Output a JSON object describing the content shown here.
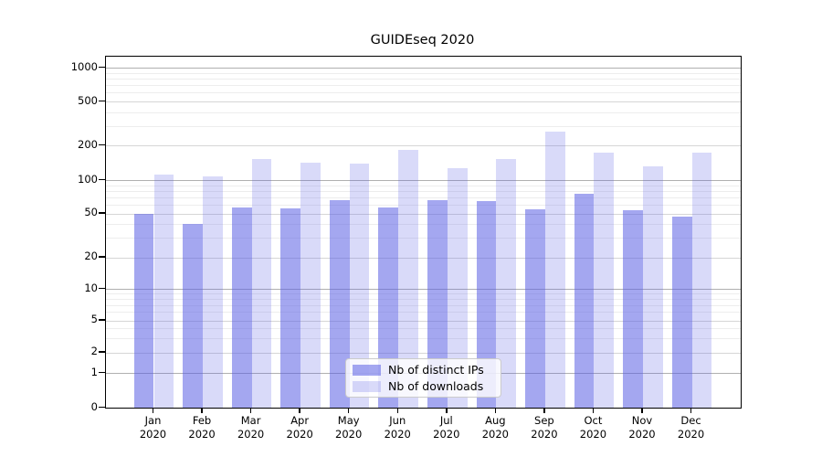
{
  "title": "GUIDEseq 2020",
  "chart_data": {
    "type": "bar",
    "title": "GUIDEseq 2020",
    "categories": [
      "Jan 2020",
      "Feb 2020",
      "Mar 2020",
      "Apr 2020",
      "May 2020",
      "Jun 2020",
      "Jul 2020",
      "Aug 2020",
      "Sep 2020",
      "Oct 2020",
      "Nov 2020",
      "Dec 2020"
    ],
    "series": [
      {
        "name": "Nb of distinct IPs",
        "color": "rgba(90,94,228,0.55)",
        "values": [
          50,
          40,
          57,
          56,
          66,
          57,
          66,
          65,
          54,
          75,
          53,
          47
        ]
      },
      {
        "name": "Nb of downloads",
        "color": "rgba(90,94,228,0.23)",
        "values": [
          112,
          108,
          152,
          141,
          140,
          182,
          127,
          154,
          265,
          174,
          133,
          174
        ]
      }
    ],
    "xlabel": "",
    "ylabel": "",
    "yscale": "symlog",
    "yticks": [
      0,
      1,
      2,
      5,
      10,
      20,
      50,
      100,
      200,
      500,
      1000
    ],
    "yminor_ticks": [
      3,
      4,
      6,
      7,
      8,
      9,
      30,
      40,
      60,
      70,
      80,
      90,
      300,
      400,
      600,
      700,
      800,
      900
    ],
    "ylim": [
      0,
      1300
    ],
    "grid": "horizontal",
    "legend_position": "inside lower center",
    "bar_edge": "none"
  },
  "legend": {
    "entries": [
      "Nb of distinct IPs",
      "Nb of downloads"
    ]
  },
  "colors": {
    "bar_base": "#5a5ee4",
    "grid_major": "#b0b0b0",
    "grid_labeled": "#d6d6d6",
    "grid_minor": "#ededed",
    "axis": "#000000",
    "background": "#ffffff"
  }
}
